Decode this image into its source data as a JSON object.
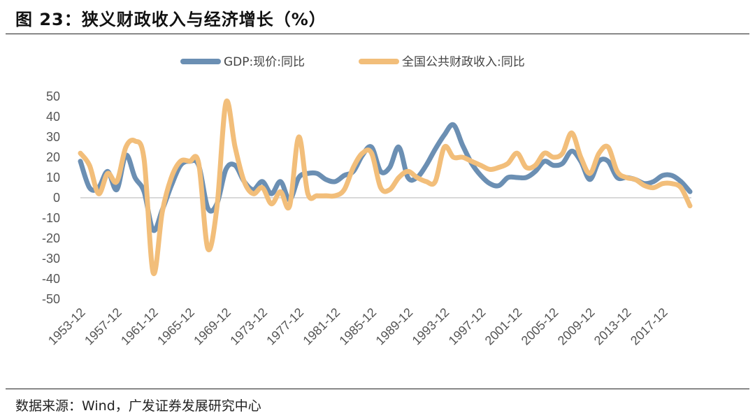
{
  "title": "图 23：狭义财政收入与经济增长（%）",
  "source": "数据来源：Wind，广发证券发展研究中心",
  "colors": {
    "gdp": "#6b8fb3",
    "fiscal": "#f2be7a",
    "zero": "#d9d9d9"
  },
  "chart_data": {
    "type": "line",
    "title": "狭义财政收入与经济增长（%）",
    "xlabel": "",
    "ylabel": "",
    "ylim": [
      -50,
      50
    ],
    "yticks": [
      "50",
      "40",
      "30",
      "20",
      "10",
      "0",
      "-10",
      "-20",
      "-30",
      "-40",
      "-50"
    ],
    "ytick_values": [
      50,
      40,
      30,
      20,
      10,
      0,
      -10,
      -20,
      -30,
      -40,
      -50
    ],
    "xtick_labels": [
      "1953-12",
      "1957-12",
      "1961-12",
      "1965-12",
      "1969-12",
      "1973-12",
      "1977-12",
      "1981-12",
      "1985-12",
      "1989-12",
      "1993-12",
      "1997-12",
      "2001-12",
      "2005-12",
      "2009-12",
      "2013-12",
      "2017-12"
    ],
    "x": [
      1953,
      1954,
      1955,
      1956,
      1957,
      1958,
      1959,
      1960,
      1961,
      1962,
      1963,
      1964,
      1965,
      1966,
      1967,
      1968,
      1969,
      1970,
      1971,
      1972,
      1973,
      1974,
      1975,
      1976,
      1977,
      1978,
      1979,
      1980,
      1981,
      1982,
      1983,
      1984,
      1985,
      1986,
      1987,
      1988,
      1989,
      1990,
      1991,
      1992,
      1993,
      1994,
      1995,
      1996,
      1997,
      1998,
      1999,
      2000,
      2001,
      2002,
      2003,
      2004,
      2005,
      2006,
      2007,
      2008,
      2009,
      2010,
      2011,
      2012,
      2013,
      2014,
      2015,
      2016,
      2017,
      2018,
      2019,
      2020
    ],
    "legend": [
      "GDP:现价:同比",
      "全国公共财政收入:同比"
    ],
    "legend_position": "top-center",
    "series": [
      {
        "name": "GDP:现价:同比",
        "color": "#6b8fb3",
        "values": [
          18,
          5,
          5,
          13,
          4,
          21,
          10,
          3,
          -16,
          -6,
          6,
          16,
          18,
          16,
          -5,
          -3,
          14,
          16,
          8,
          4,
          8,
          2,
          8,
          -1,
          10,
          12,
          12,
          9,
          8,
          11,
          13,
          21,
          25,
          13,
          15,
          25,
          10,
          10,
          16,
          24,
          31,
          36,
          26,
          17,
          11,
          7,
          6,
          10,
          10,
          10,
          13,
          18,
          16,
          17,
          23,
          18,
          9,
          18,
          18,
          10,
          10,
          9,
          7,
          8,
          11,
          11,
          8,
          3
        ]
      },
      {
        "name": "全国公共财政收入:同比",
        "color": "#f2be7a",
        "values": [
          22,
          16,
          2,
          12,
          8,
          25,
          28,
          19,
          -37,
          -7,
          10,
          18,
          18,
          17,
          -25,
          -5,
          47,
          25,
          8,
          2,
          5,
          -3,
          3,
          -4,
          30,
          2,
          1,
          1,
          1,
          4,
          15,
          22,
          22,
          5,
          4,
          10,
          13,
          10,
          8,
          8,
          25,
          20,
          20,
          18,
          16,
          14,
          15,
          17,
          22,
          15,
          16,
          22,
          20,
          22,
          32,
          20,
          12,
          22,
          25,
          13,
          10,
          9,
          6,
          5,
          7,
          7,
          5,
          -4
        ]
      }
    ]
  }
}
